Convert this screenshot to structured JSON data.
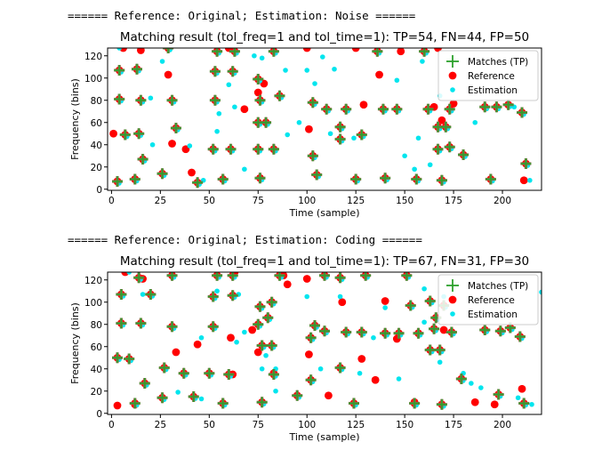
{
  "outputs": [
    "====== Reference: Original; Estimation: Noise ======",
    "====== Reference: Original; Estimation: Coding ======"
  ],
  "colors": {
    "match": "#2ca02c",
    "reference": "#ff0000",
    "estimation": "#00e5ee",
    "match_edge": "#8b6f47"
  },
  "chart_data": [
    {
      "type": "scatter",
      "title": "Matching result (tol_freq=1 and tol_time=1): TP=54, FN=44, FP=50",
      "xlabel": "Time (sample)",
      "ylabel": "Frequency (bins)",
      "xlim": [
        -2,
        220
      ],
      "ylim": [
        -1,
        127
      ],
      "xticks": [
        0,
        25,
        50,
        75,
        100,
        125,
        150,
        175,
        200
      ],
      "yticks": [
        0,
        20,
        40,
        60,
        80,
        100,
        120
      ],
      "legend": {
        "position": "top-right",
        "entries": [
          "Matches (TP)",
          "Reference",
          "Estimation"
        ]
      },
      "series": [
        {
          "name": "Matches (TP)",
          "marker": "plus",
          "points": [
            [
              3,
              7
            ],
            [
              4,
              81
            ],
            [
              4,
              107
            ],
            [
              7,
              49
            ],
            [
              12,
              9
            ],
            [
              13,
              108
            ],
            [
              14,
              50
            ],
            [
              15,
              80
            ],
            [
              16,
              27
            ],
            [
              26,
              14
            ],
            [
              29,
              127
            ],
            [
              31,
              80
            ],
            [
              33,
              55
            ],
            [
              44,
              6
            ],
            [
              52,
              36
            ],
            [
              53,
              80
            ],
            [
              53,
              106
            ],
            [
              54,
              124
            ],
            [
              57,
              9
            ],
            [
              61,
              36
            ],
            [
              62,
              106
            ],
            [
              63,
              124
            ],
            [
              75,
              36
            ],
            [
              75,
              60
            ],
            [
              75,
              99
            ],
            [
              76,
              10
            ],
            [
              76,
              80
            ],
            [
              79,
              60
            ],
            [
              83,
              36
            ],
            [
              83,
              124
            ],
            [
              86,
              84
            ],
            [
              103,
              30
            ],
            [
              103,
              78
            ],
            [
              105,
              13
            ],
            [
              110,
              72
            ],
            [
              117,
              45
            ],
            [
              117,
              56
            ],
            [
              120,
              72
            ],
            [
              125,
              9
            ],
            [
              128,
              49
            ],
            [
              136,
              124
            ],
            [
              139,
              72
            ],
            [
              140,
              10
            ],
            [
              146,
              72
            ],
            [
              156,
              9
            ],
            [
              160,
              124
            ],
            [
              162,
              72
            ],
            [
              167,
              56
            ],
            [
              167,
              36
            ],
            [
              169,
              8
            ],
            [
              171,
              56
            ],
            [
              173,
              38
            ],
            [
              173,
              72
            ],
            [
              180,
              31
            ]
          ],
          "extra": [
            [
              191,
              74
            ],
            [
              194,
              9
            ],
            [
              197,
              74
            ],
            [
              203,
              76
            ],
            [
              210,
              69
            ],
            [
              212,
              23
            ]
          ]
        },
        {
          "name": "Reference",
          "marker": "dot",
          "points": [
            [
              1,
              50
            ],
            [
              3,
              7
            ],
            [
              6,
              127
            ],
            [
              12,
              9
            ],
            [
              15,
              125
            ],
            [
              29,
              103
            ],
            [
              31,
              41
            ],
            [
              38,
              36
            ],
            [
              41,
              15
            ],
            [
              60,
              127
            ],
            [
              68,
              72
            ],
            [
              75,
              87
            ],
            [
              78,
              95
            ],
            [
              100,
              127
            ],
            [
              101,
              54
            ],
            [
              125,
              127
            ],
            [
              129,
              76
            ],
            [
              137,
              103
            ],
            [
              148,
              124
            ],
            [
              165,
              74
            ],
            [
              167,
              127
            ],
            [
              169,
              62
            ],
            [
              175,
              77
            ],
            [
              211,
              8
            ]
          ]
        },
        {
          "name": "Estimation",
          "marker": "dot",
          "points": [
            [
              4,
              127
            ],
            [
              20,
              82
            ],
            [
              21,
              40
            ],
            [
              26,
              115
            ],
            [
              40,
              39
            ],
            [
              47,
              8
            ],
            [
              54,
              52
            ],
            [
              55,
              68
            ],
            [
              60,
              94
            ],
            [
              63,
              74
            ],
            [
              68,
              18
            ],
            [
              73,
              120
            ],
            [
              77,
              118
            ],
            [
              89,
              107
            ],
            [
              90,
              49
            ],
            [
              96,
              60
            ],
            [
              100,
              107
            ],
            [
              104,
              95
            ],
            [
              108,
              119
            ],
            [
              112,
              50
            ],
            [
              114,
              108
            ],
            [
              117,
              46
            ],
            [
              124,
              46
            ],
            [
              146,
              98
            ],
            [
              150,
              30
            ],
            [
              155,
              18
            ],
            [
              157,
              46
            ],
            [
              159,
              115
            ],
            [
              163,
              22
            ],
            [
              168,
              84
            ],
            [
              174,
              101
            ],
            [
              186,
              60
            ],
            [
              206,
              74
            ],
            [
              214,
              8
            ]
          ]
        }
      ]
    },
    {
      "type": "scatter",
      "title": "Matching result (tol_freq=1 and tol_time=1): TP=67, FN=31, FP=30",
      "xlabel": "Time (sample)",
      "ylabel": "Frequency (bins)",
      "xlim": [
        -2,
        220
      ],
      "ylim": [
        -1,
        127
      ],
      "xticks": [
        0,
        25,
        50,
        75,
        100,
        125,
        150,
        175,
        200
      ],
      "yticks": [
        0,
        20,
        40,
        60,
        80,
        100,
        120
      ],
      "legend": {
        "position": "top-right",
        "entries": [
          "Matches (TP)",
          "Reference",
          "Estimation"
        ]
      },
      "series": [
        {
          "name": "Matches (TP)",
          "marker": "plus",
          "points": [
            [
              3,
              50
            ],
            [
              5,
              81
            ],
            [
              5,
              107
            ],
            [
              9,
              49
            ],
            [
              12,
              9
            ],
            [
              14,
              122
            ],
            [
              15,
              81
            ],
            [
              17,
              27
            ],
            [
              20,
              107
            ],
            [
              26,
              14
            ],
            [
              27,
              41
            ],
            [
              31,
              78
            ],
            [
              31,
              124
            ],
            [
              37,
              36
            ],
            [
              42,
              15
            ],
            [
              50,
              36
            ],
            [
              52,
              78
            ],
            [
              52,
              105
            ],
            [
              54,
              124
            ],
            [
              57,
              9
            ],
            [
              60,
              35
            ],
            [
              62,
              106
            ],
            [
              62,
              124
            ],
            [
              75,
              80
            ],
            [
              76,
              96
            ],
            [
              77,
              61
            ],
            [
              77,
              10
            ],
            [
              80,
              86
            ],
            [
              82,
              100
            ],
            [
              82,
              61
            ],
            [
              83,
              35
            ],
            [
              86,
              124
            ],
            [
              95,
              16
            ],
            [
              102,
              68
            ],
            [
              102,
              30
            ],
            [
              104,
              79
            ],
            [
              109,
              74
            ],
            [
              109,
              124
            ],
            [
              117,
              122
            ],
            [
              117,
              41
            ],
            [
              120,
              73
            ],
            [
              124,
              9
            ],
            [
              128,
              73
            ],
            [
              130,
              124
            ],
            [
              140,
              72
            ],
            [
              147,
              72
            ],
            [
              151,
              124
            ],
            [
              153,
              97
            ],
            [
              155,
              9
            ],
            [
              157,
              72
            ],
            [
              163,
              57
            ],
            [
              163,
              101
            ],
            [
              165,
              76
            ],
            [
              166,
              86
            ],
            [
              168,
              57
            ],
            [
              169,
              8
            ],
            [
              170,
              97
            ],
            [
              174,
              73
            ]
          ],
          "extra": [
            [
              179,
              31
            ],
            [
              191,
              75
            ],
            [
              198,
              17
            ],
            [
              199,
              74
            ],
            [
              204,
              77
            ],
            [
              209,
              69
            ],
            [
              211,
              9
            ]
          ]
        },
        {
          "name": "Reference",
          "marker": "dot",
          "points": [
            [
              3,
              7
            ],
            [
              7,
              127
            ],
            [
              12,
              8
            ],
            [
              16,
              121
            ],
            [
              33,
              55
            ],
            [
              44,
              62
            ],
            [
              61,
              68
            ],
            [
              62,
              35
            ],
            [
              63,
              127
            ],
            [
              72,
              75
            ],
            [
              75,
              55
            ],
            [
              83,
              36
            ],
            [
              88,
              124
            ],
            [
              90,
              116
            ],
            [
              100,
              121
            ],
            [
              101,
              53
            ],
            [
              111,
              16
            ],
            [
              118,
              100
            ],
            [
              128,
              49
            ],
            [
              135,
              30
            ],
            [
              140,
              101
            ],
            [
              146,
              67
            ],
            [
              155,
              10
            ],
            [
              170,
              75
            ],
            [
              186,
              10
            ],
            [
              196,
              8
            ],
            [
              210,
              22
            ]
          ]
        },
        {
          "name": "Estimation",
          "marker": "dot",
          "points": [
            [
              9,
              127
            ],
            [
              16,
              107
            ],
            [
              34,
              19
            ],
            [
              46,
              13
            ],
            [
              54,
              110
            ],
            [
              46,
              68
            ],
            [
              64,
              64
            ],
            [
              65,
              107
            ],
            [
              68,
              73
            ],
            [
              77,
              40
            ],
            [
              79,
              52
            ],
            [
              84,
              20
            ],
            [
              84,
              40
            ],
            [
              100,
              105
            ],
            [
              107,
              40
            ],
            [
              117,
              105
            ],
            [
              127,
              36
            ],
            [
              134,
              68
            ],
            [
              140,
              95
            ],
            [
              147,
              31
            ],
            [
              160,
              82
            ],
            [
              160,
              112
            ],
            [
              168,
              46
            ],
            [
              170,
              105
            ],
            [
              180,
              36
            ],
            [
              184,
              27
            ],
            [
              189,
              23
            ],
            [
              208,
              14
            ],
            [
              220,
              109
            ],
            [
              215,
              8
            ]
          ]
        }
      ]
    }
  ]
}
